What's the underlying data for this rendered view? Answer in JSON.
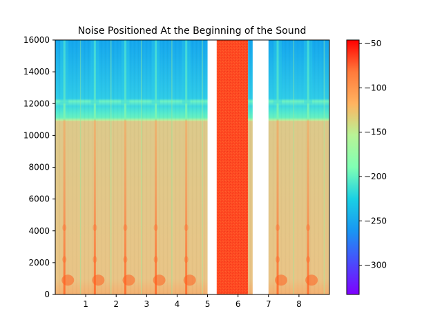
{
  "chart_data": {
    "type": "heatmap",
    "title": "Noise Positioned At the Beginning of the Sound",
    "xlabel": "",
    "ylabel": "",
    "xlim": [
      0,
      9
    ],
    "ylim": [
      0,
      16000
    ],
    "x_ticks": [
      1,
      2,
      3,
      4,
      5,
      6,
      7,
      8
    ],
    "x_tick_labels": [
      "1",
      "2",
      "3",
      "4",
      "5",
      "6",
      "7",
      "8"
    ],
    "y_ticks": [
      0,
      2000,
      4000,
      6000,
      8000,
      10000,
      12000,
      14000,
      16000
    ],
    "y_tick_labels": [
      "0",
      "2000",
      "4000",
      "6000",
      "8000",
      "10000",
      "12000",
      "14000",
      "16000"
    ],
    "colormap": "rainbow",
    "colorbar": {
      "range": [
        -333,
        -46
      ],
      "ticks": [
        -50,
        -100,
        -150,
        -200,
        -250,
        -300
      ],
      "tick_labels": [
        "−50",
        "−100",
        "−150",
        "−200",
        "−250",
        "−300"
      ]
    },
    "segments": [
      {
        "x_start": 0.0,
        "x_end": 5.0,
        "kind": "sound",
        "onsets": [
          0.3,
          1.3,
          2.3,
          3.3,
          4.3
        ]
      },
      {
        "x_start": 5.3,
        "x_end": 6.33,
        "kind": "noise",
        "level": -62
      },
      {
        "x_start": 6.33,
        "x_end": 6.48,
        "kind": "sound",
        "onsets": []
      },
      {
        "x_start": 7.0,
        "x_end": 9.0,
        "kind": "sound",
        "onsets": [
          7.3,
          8.3
        ]
      }
    ],
    "grid": false
  }
}
